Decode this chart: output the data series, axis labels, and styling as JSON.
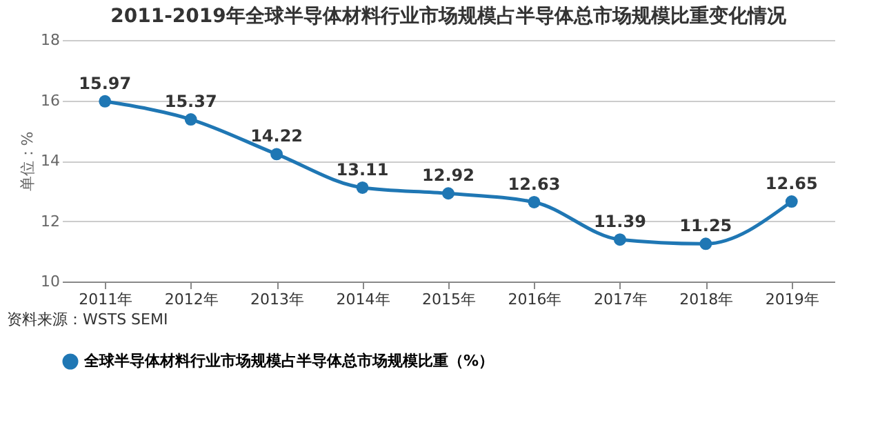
{
  "chart_data": {
    "type": "line",
    "title": "2011-2019年全球半导体材料行业市场规模占半导体总市场规模比重变化情况",
    "ylabel": "单位：%",
    "categories": [
      "2011年",
      "2012年",
      "2013年",
      "2014年",
      "2015年",
      "2016年",
      "2017年",
      "2018年",
      "2019年"
    ],
    "series": [
      {
        "name": "全球半导体材料行业市场规模占半导体总市场规模比重（%）",
        "color": "#1f77b4",
        "values": [
          15.97,
          15.37,
          14.22,
          13.11,
          12.92,
          12.63,
          11.39,
          11.25,
          12.65
        ]
      }
    ],
    "ylim": [
      10,
      18
    ],
    "yticks": [
      10,
      12,
      14,
      16,
      18
    ],
    "grid": "y",
    "legend": "bottom",
    "marker": "circle",
    "line_style": "solid",
    "data_labels": true,
    "annotations": [
      "资料来源：WSTS SEMI"
    ]
  }
}
